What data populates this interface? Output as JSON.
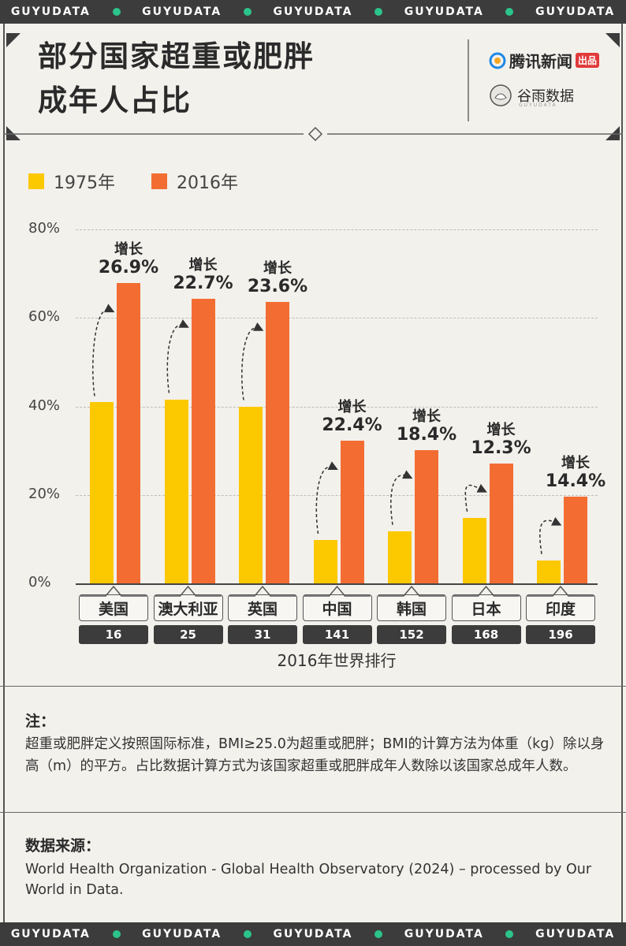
{
  "watermark": "GUYUDATA",
  "header": {
    "title_line1": "部分国家超重或肥胖",
    "title_line2": "成年人占比",
    "tencent_logo_text": "腾讯新闻",
    "tencent_badge": "出品",
    "guyu_logo_text": "谷雨数据",
    "guyu_logo_sub": "GUYUDATA"
  },
  "colors": {
    "series_1975": "#fcc800",
    "series_2016": "#f36d33",
    "band": "#3c3c3c",
    "band_dot": "#2bc48a"
  },
  "chart_data": {
    "type": "bar",
    "title": "部分国家超重或肥胖成年人占比",
    "categories": [
      "美国",
      "澳大利亚",
      "英国",
      "中国",
      "韩国",
      "日本",
      "印度"
    ],
    "series": [
      {
        "name": "1975年",
        "values": [
          40.9,
          41.6,
          40.0,
          9.8,
          11.8,
          14.8,
          5.2
        ]
      },
      {
        "name": "2016年",
        "values": [
          67.8,
          64.3,
          63.6,
          32.2,
          30.2,
          27.1,
          19.6
        ]
      }
    ],
    "growth_label": "增长",
    "growth_values": [
      "26.9%",
      "22.7%",
      "23.6%",
      "22.4%",
      "18.4%",
      "12.3%",
      "14.4%"
    ],
    "ranks": [
      "16",
      "25",
      "31",
      "141",
      "152",
      "168",
      "196"
    ],
    "rank_caption": "2016年世界排行",
    "y_ticks": [
      "0%",
      "20%",
      "40%",
      "60%",
      "80%"
    ],
    "ylim": [
      0,
      80
    ],
    "grid": true,
    "legend_position": "top-left"
  },
  "notes": {
    "title": "注：",
    "body": "超重或肥胖定义按照国际标准，BMI≥25.0为超重或肥胖；BMI的计算方法为体重（kg）除以身高（m）的平方。占比数据计算方式为该国家超重或肥胖成年人数除以该国家总成年人数。"
  },
  "source": {
    "title": "数据来源：",
    "body": "World Health Organization - Global Health Observatory (2024) – processed by Our World in Data."
  }
}
